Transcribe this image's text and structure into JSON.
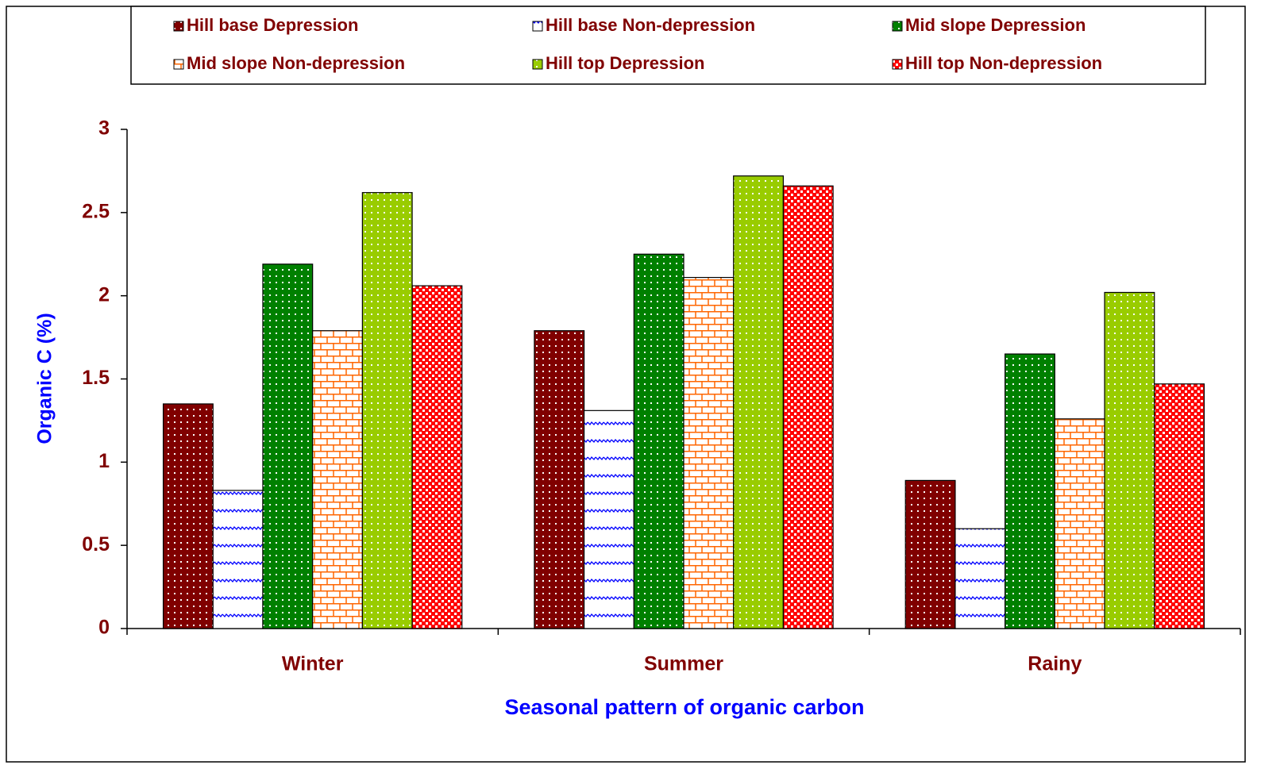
{
  "chart_data": {
    "type": "bar",
    "x_label": "Seasonal pattern of organic carbon",
    "y_label": "Organic C (%)",
    "categories": [
      "Winter",
      "Summer",
      "Rainy"
    ],
    "series": [
      {
        "name": "Hill base Depression",
        "color": "#800000",
        "values": [
          1.35,
          1.79,
          0.89
        ]
      },
      {
        "name": "Hill base Non-depression",
        "color": "#0000ff",
        "values": [
          0.83,
          1.31,
          0.6
        ]
      },
      {
        "name": "Mid slope Depression",
        "color": "#008000",
        "values": [
          2.19,
          2.25,
          1.65
        ]
      },
      {
        "name": "Mid slope Non-depression",
        "color": "#ff6600",
        "values": [
          1.79,
          2.11,
          1.26
        ]
      },
      {
        "name": "Hill top Depression",
        "color": "#99cc00",
        "values": [
          2.62,
          2.72,
          2.02
        ]
      },
      {
        "name": "Hill top Non-depression",
        "color": "#ff0000",
        "values": [
          2.06,
          2.66,
          1.47
        ]
      }
    ],
    "ylim": [
      0,
      3
    ],
    "yticks": [
      0,
      0.5,
      1,
      1.5,
      2,
      2.5,
      3
    ],
    "grid": false
  }
}
